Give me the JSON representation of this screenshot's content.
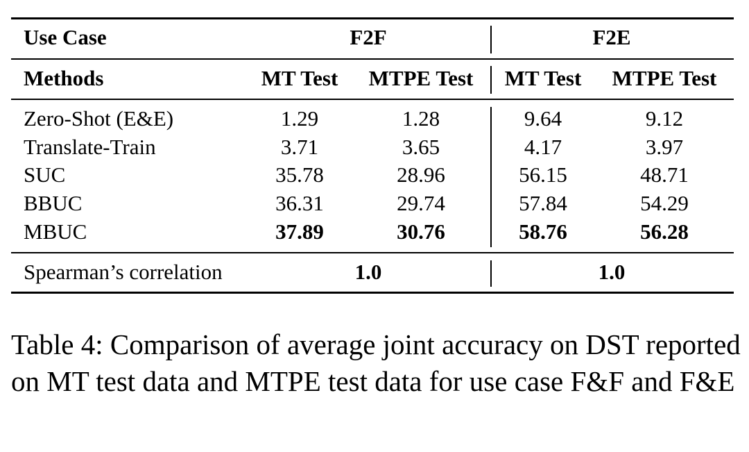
{
  "table": {
    "header1": {
      "use_case": "Use Case",
      "group_a": "F2F",
      "group_b": "F2E"
    },
    "header2": {
      "methods": "Methods",
      "a_mt": "MT Test",
      "a_mtpe": "MTPE Test",
      "b_mt": "MT Test",
      "b_mtpe": "MTPE Test"
    },
    "rows": [
      {
        "method": "Zero-Shot (E&E)",
        "v": [
          "1.29",
          "1.28",
          "9.64",
          "9.12"
        ]
      },
      {
        "method": "Translate-Train",
        "v": [
          "3.71",
          "3.65",
          "4.17",
          "3.97"
        ]
      },
      {
        "method": "SUC",
        "v": [
          "35.78",
          "28.96",
          "56.15",
          "48.71"
        ]
      },
      {
        "method": "BBUC",
        "v": [
          "36.31",
          "29.74",
          "57.84",
          "54.29"
        ]
      },
      {
        "method": "MBUC",
        "v": [
          "37.89",
          "30.76",
          "58.76",
          "56.28"
        ]
      }
    ],
    "spearman": {
      "label": "Spearman’s correlation",
      "a": "1.0",
      "b": "1.0"
    }
  },
  "caption": "Table 4: Comparison of average joint accuracy on DST reported on MT test data and MTPE test data for use case F&F and F&E"
}
